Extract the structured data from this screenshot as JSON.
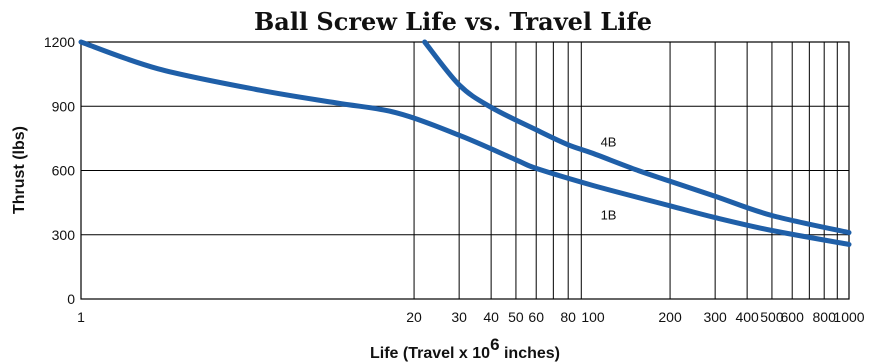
{
  "chart_data": {
    "type": "line",
    "title": "Ball Screw Life vs. Travel Life",
    "xlabel_main": "Life (Travel x 10",
    "xlabel_exp": "6",
    "xlabel_tail": " inches)",
    "ylabel": "Thrust (lbs)",
    "x_scale": "log",
    "xlim": [
      1,
      1000
    ],
    "ylim": [
      0,
      1200
    ],
    "x_ticks": [
      1,
      20,
      30,
      40,
      50,
      60,
      80,
      100,
      200,
      300,
      400,
      500,
      600,
      800,
      1000
    ],
    "x_tick_labels": [
      "1",
      "20",
      "30",
      "40",
      "50",
      "60",
      "80",
      "100",
      "200",
      "300",
      "400",
      "500",
      "600",
      "800",
      "1000"
    ],
    "x_gridlines": [
      20,
      30,
      40,
      50,
      60,
      70,
      80,
      90,
      200,
      300,
      400,
      500,
      600,
      700,
      800,
      900
    ],
    "y_ticks": [
      0,
      300,
      600,
      900,
      1200
    ],
    "y_tick_labels": [
      "0",
      "300",
      "600",
      "900",
      "1200"
    ],
    "grid": true,
    "line_color": "#1f5fa8",
    "series": [
      {
        "name": "1B",
        "x": [
          1,
          2,
          5,
          10,
          17,
          30,
          50,
          60,
          100,
          200,
          300,
          500,
          1000
        ],
        "y": [
          1200,
          1075,
          975,
          915,
          870,
          765,
          650,
          610,
          530,
          435,
          380,
          320,
          255
        ]
      },
      {
        "name": "4B",
        "x": [
          22,
          30,
          40,
          60,
          80,
          100,
          150,
          200,
          300,
          500,
          1000
        ],
        "y": [
          1200,
          1000,
          895,
          790,
          720,
          680,
          600,
          550,
          480,
          390,
          310
        ]
      }
    ]
  }
}
